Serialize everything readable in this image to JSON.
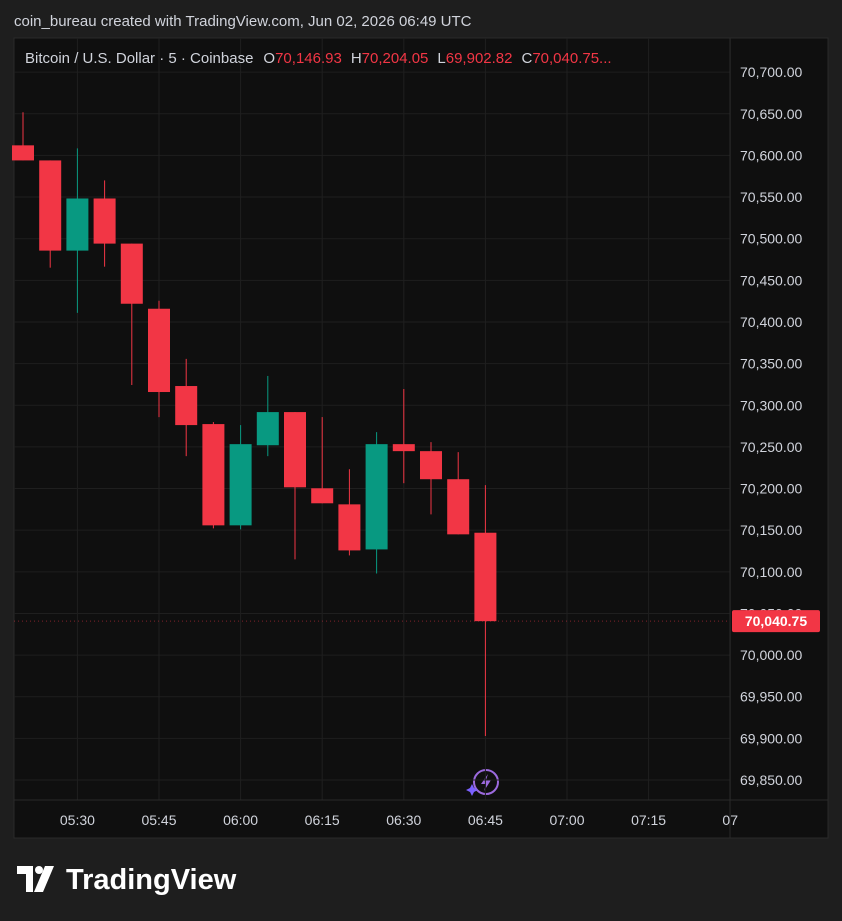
{
  "header": "coin_bureau created with TradingView.com, Jun 02, 2026 06:49 UTC",
  "legend": {
    "symbol": "Bitcoin / U.S. Dollar · 5 · Coinbase",
    "ohlc": [
      {
        "key": "O",
        "value": "70,146.93"
      },
      {
        "key": "H",
        "value": "70,204.05"
      },
      {
        "key": "L",
        "value": "69,902.82"
      },
      {
        "key": "C",
        "value": "70,040.75..."
      }
    ]
  },
  "chart_data": {
    "type": "candlestick",
    "categories": [
      null,
      null,
      "05:30",
      null,
      null,
      "05:45",
      null,
      null,
      "06:00",
      null,
      null,
      "06:15",
      null,
      null,
      "06:30",
      null,
      null,
      "06:45",
      null,
      null,
      "07:00",
      null,
      null,
      "07:15",
      null,
      null,
      "07"
    ],
    "series": [
      {
        "up_color": "#089981",
        "down_color": "#f23645",
        "open": [
          70612.1,
          70594.0,
          70485.7,
          70548.3,
          70494.1,
          70415.9,
          70323.1,
          70277.4,
          70155.8,
          70252.0,
          70291.8,
          70200.3,
          70181.0,
          70126.9,
          70253.3,
          70244.9,
          70211.2,
          70146.93,
          null,
          null,
          null,
          null,
          null,
          null,
          null,
          null,
          null
        ],
        "high": [
          70651.8,
          70594.0,
          70608.5,
          70570.0,
          70494.1,
          70425.5,
          70355.7,
          70279.8,
          70276.2,
          70335.2,
          70291.8,
          70285.8,
          70223.2,
          70267.8,
          70319.5,
          70255.7,
          70243.7,
          70204.05,
          null,
          null,
          null,
          null,
          null,
          null,
          null,
          null,
          null
        ],
        "low": [
          70594.0,
          70465.2,
          70411.0,
          70466.4,
          70324.4,
          70285.8,
          70238.9,
          70152.2,
          70151.0,
          70238.9,
          70114.9,
          70182.3,
          70119.7,
          70098.0,
          70206.4,
          70169.0,
          70145.0,
          69902.82,
          null,
          null,
          null,
          null,
          null,
          null,
          null,
          null,
          null
        ],
        "close": [
          70594.0,
          70485.7,
          70548.3,
          70494.1,
          70421.9,
          70315.9,
          70276.2,
          70155.8,
          70253.3,
          70291.8,
          70201.5,
          70182.3,
          70125.7,
          70253.3,
          70244.9,
          70211.2,
          70145.0,
          70040.75,
          null,
          null,
          null,
          null,
          null,
          null,
          null,
          null,
          null
        ]
      }
    ],
    "ylim": [
      69826,
      70741
    ],
    "yticks": [
      {
        "value": 69850,
        "label": "69,850.00"
      },
      {
        "value": 69900,
        "label": "69,900.00"
      },
      {
        "value": 69950,
        "label": "69,950.00"
      },
      {
        "value": 70000,
        "label": "70,000.00"
      },
      {
        "value": 70050,
        "label": "70,050.00"
      },
      {
        "value": 70100,
        "label": "70,100.00"
      },
      {
        "value": 70150,
        "label": "70,150.00"
      },
      {
        "value": 70200,
        "label": "70,200.00"
      },
      {
        "value": 70250,
        "label": "70,250.00"
      },
      {
        "value": 70300,
        "label": "70,300.00"
      },
      {
        "value": 70350,
        "label": "70,350.00"
      },
      {
        "value": 70400,
        "label": "70,400.00"
      },
      {
        "value": 70450,
        "label": "70,450.00"
      },
      {
        "value": 70500,
        "label": "70,500.00"
      },
      {
        "value": 70550,
        "label": "70,550.00"
      },
      {
        "value": 70600,
        "label": "70,600.00"
      },
      {
        "value": 70650,
        "label": "70,650.00"
      },
      {
        "value": 70700,
        "label": "70,700.00"
      }
    ],
    "grid": true,
    "last_price": {
      "value": 70040.75,
      "label": "70,040.75",
      "color": "#f23645"
    }
  },
  "footer": "TradingView"
}
